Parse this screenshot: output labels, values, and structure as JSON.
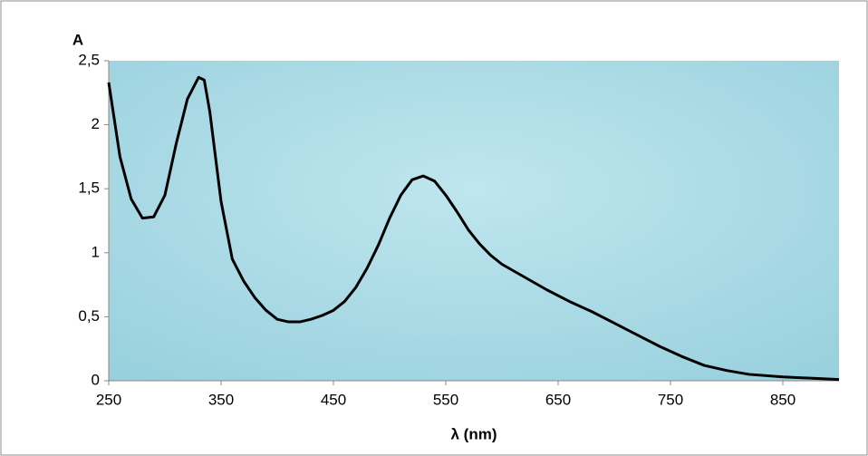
{
  "chart_data": {
    "type": "line",
    "y_label": "A",
    "x_label": "λ (nm)",
    "x": [
      250,
      260,
      270,
      280,
      290,
      300,
      310,
      320,
      330,
      335,
      340,
      350,
      360,
      370,
      380,
      390,
      400,
      410,
      420,
      430,
      440,
      450,
      460,
      470,
      480,
      490,
      500,
      510,
      520,
      530,
      540,
      550,
      560,
      570,
      580,
      590,
      600,
      620,
      640,
      660,
      680,
      700,
      720,
      740,
      760,
      780,
      800,
      820,
      850,
      900
    ],
    "series": [
      {
        "color": "#000000",
        "values": [
          2.33,
          1.75,
          1.42,
          1.27,
          1.28,
          1.45,
          1.85,
          2.2,
          2.37,
          2.35,
          2.1,
          1.4,
          0.95,
          0.78,
          0.65,
          0.55,
          0.48,
          0.46,
          0.46,
          0.48,
          0.51,
          0.55,
          0.62,
          0.73,
          0.88,
          1.06,
          1.27,
          1.45,
          1.57,
          1.6,
          1.56,
          1.45,
          1.32,
          1.18,
          1.07,
          0.98,
          0.91,
          0.81,
          0.71,
          0.62,
          0.54,
          0.45,
          0.36,
          0.27,
          0.19,
          0.12,
          0.08,
          0.05,
          0.03,
          0.01
        ]
      }
    ],
    "xlim": [
      250,
      900
    ],
    "xticks": [
      250,
      350,
      450,
      550,
      650,
      750,
      850
    ],
    "ylim": [
      0,
      2.5
    ],
    "yticks": [
      0,
      {
        "value": 0.5,
        "label": "0,5"
      },
      1,
      {
        "value": 1.5,
        "label": "1,5"
      },
      2,
      {
        "value": 2.5,
        "label": "2,5"
      }
    ]
  }
}
